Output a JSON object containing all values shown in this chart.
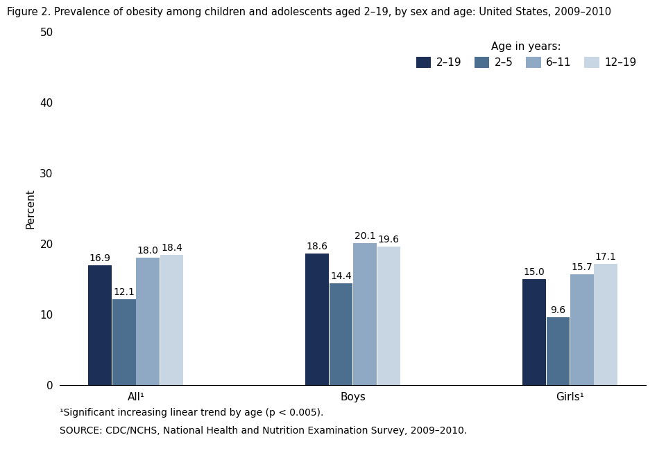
{
  "title": "Figure 2. Prevalence of obesity among children and adolescents aged 2–19, by sex and age: United States, 2009–2010",
  "ylabel": "Percent",
  "ylim": [
    0,
    50
  ],
  "yticks": [
    0,
    10,
    20,
    30,
    40,
    50
  ],
  "groups": [
    "All¹",
    "Boys",
    "Girls¹"
  ],
  "series_labels": [
    "2–19",
    "2–5",
    "6–11",
    "12–19"
  ],
  "legend_title": "Age in years:",
  "values": {
    "All¹": [
      16.9,
      12.1,
      18.0,
      18.4
    ],
    "Boys": [
      18.6,
      14.4,
      20.1,
      19.6
    ],
    "Girls¹": [
      15.0,
      9.6,
      15.7,
      17.1
    ]
  },
  "colors": [
    "#1c3057",
    "#4d6f8f",
    "#8fa8c4",
    "#c8d5e3"
  ],
  "bar_width": 0.22,
  "group_centers": [
    1.0,
    3.0,
    5.0
  ],
  "footnote1": "¹Significant increasing linear trend by age (p < 0.005).",
  "footnote2": "SOURCE: CDC/NCHS, National Health and Nutrition Examination Survey, 2009–2010.",
  "background_color": "#ffffff",
  "title_fontsize": 10.5,
  "axis_fontsize": 11,
  "tick_fontsize": 11,
  "label_fontsize": 10,
  "legend_fontsize": 11,
  "footnote_fontsize": 10
}
